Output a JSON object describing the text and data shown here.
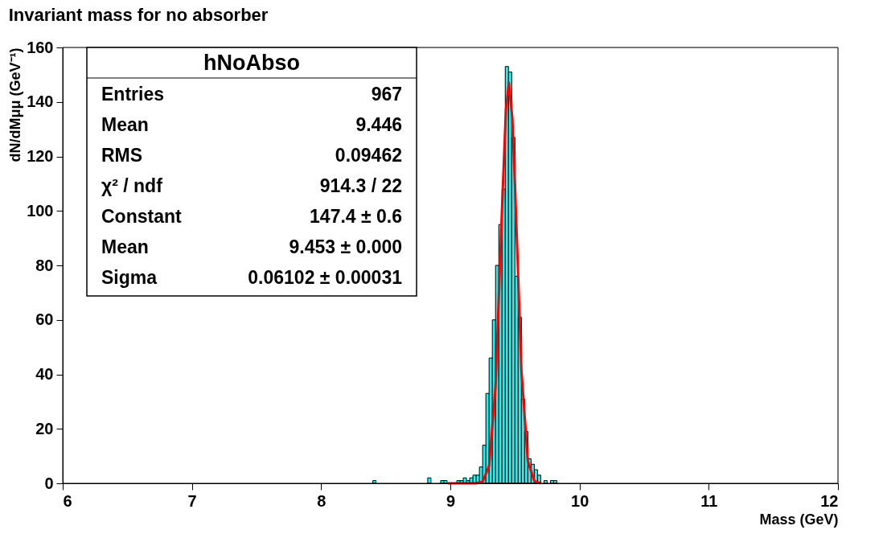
{
  "chart_data": {
    "type": "histogram",
    "title": "Invariant mass for no absorber",
    "xlabel": "Mass (GeV)",
    "ylabel": "dN/dMμμ (GeV⁻¹)",
    "bins": [
      8.4,
      8.425,
      8.45,
      8.475,
      8.5,
      8.525,
      8.55,
      8.575,
      8.6,
      8.625,
      8.65,
      8.675,
      8.7,
      8.725,
      8.75,
      8.775,
      8.8,
      8.825,
      8.85,
      8.875,
      8.9,
      8.925,
      8.95,
      8.975,
      9.0,
      9.025,
      9.05,
      9.075,
      9.1,
      9.125,
      9.15,
      9.175,
      9.2,
      9.225,
      9.25,
      9.275,
      9.3,
      9.325,
      9.35,
      9.375,
      9.4,
      9.425,
      9.45,
      9.475,
      9.5,
      9.525,
      9.55,
      9.575,
      9.6,
      9.625,
      9.65,
      9.675,
      9.7,
      9.725,
      9.75,
      9.775,
      9.8,
      9.825
    ],
    "values": [
      1,
      0,
      0,
      0,
      0,
      0,
      0,
      0,
      0,
      0,
      0,
      0,
      0,
      0,
      0,
      0,
      0,
      2,
      0,
      0,
      0,
      1,
      1,
      0,
      0,
      0,
      1,
      1,
      2,
      1,
      2,
      3,
      3,
      6,
      14,
      33,
      46,
      60,
      80,
      95,
      108,
      153,
      151,
      127,
      76,
      61,
      31,
      19,
      9,
      7,
      5,
      3,
      0,
      1,
      0,
      1,
      1
    ],
    "color": "#00ffff",
    "series": [
      {
        "type": "line",
        "color": "#ff0000",
        "x": [
          8.98,
          9.1,
          9.2,
          9.25,
          9.3,
          9.35,
          9.4,
          9.43,
          9.453,
          9.48,
          9.5,
          9.55,
          9.6,
          9.65,
          9.7
        ],
        "values": [
          0,
          0,
          0,
          0.6,
          6.4,
          35.5,
          101,
          137,
          147,
          134,
          110,
          41.6,
          8.1,
          0.8,
          0
        ]
      }
    ],
    "xlim": [
      6,
      12
    ],
    "xticks": [
      6,
      7,
      8,
      9,
      10,
      11,
      12
    ],
    "ylim": [
      0,
      160
    ],
    "yticks": [
      0,
      20,
      40,
      60,
      80,
      100,
      120,
      140,
      160
    ],
    "grid": false,
    "annotations": [
      "hNoAbso",
      "Entries",
      "967",
      "Mean",
      "9.446",
      "RMS",
      "0.09462",
      "χ² / ndf",
      "914.3 / 22",
      "Constant",
      "147.4 ± 0.6",
      "Mean",
      "9.453 ± 0.000",
      "Sigma",
      "0.06102 ± 0.00031"
    ]
  }
}
